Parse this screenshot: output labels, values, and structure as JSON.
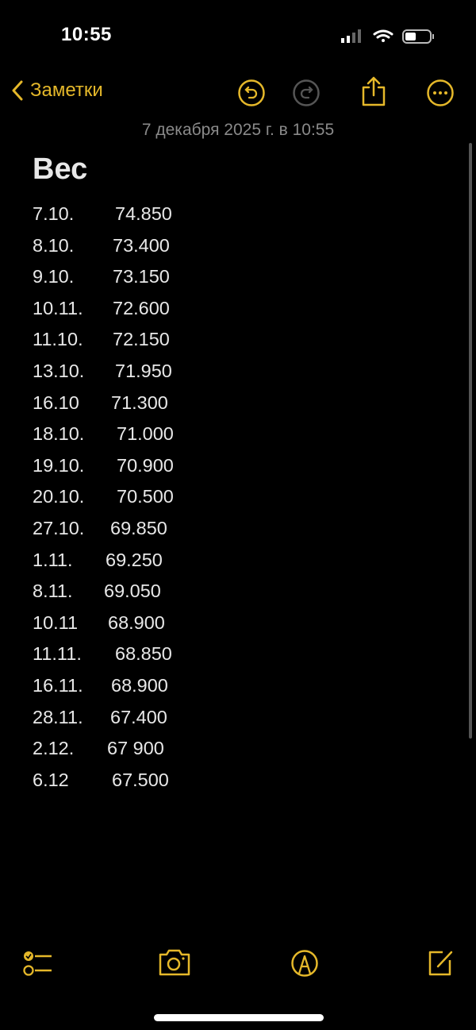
{
  "status_bar": {
    "time": "10:55",
    "signal-icon": "cellular-signal",
    "wifi-icon": "wifi",
    "battery-icon": "battery-low"
  },
  "nav": {
    "back_label": "Заметки",
    "icons": [
      "chevron-left",
      "undo",
      "redo",
      "share",
      "more"
    ]
  },
  "note": {
    "date": "7 декабря 2025 г. в 10:55",
    "title": "Вес",
    "entries": [
      {
        "date": "7.10.",
        "value": "74.850"
      },
      {
        "date": "8.10.",
        "value": "73.400"
      },
      {
        "date": "9.10.",
        "value": "73.150"
      },
      {
        "date": "10.11.",
        "value": "72.600"
      },
      {
        "date": "11.10.",
        "value": "72.150"
      },
      {
        "date": "13.10.",
        "value": "71.950"
      },
      {
        "date": "16.10",
        "value": "71.300"
      },
      {
        "date": "18.10.",
        "value": "71.000"
      },
      {
        "date": "19.10.",
        "value": "70.900"
      },
      {
        "date": "20.10.",
        "value": "70.500"
      },
      {
        "date": "27.10.",
        "value": "69.850"
      },
      {
        "date": "1.11.",
        "value": "69.250"
      },
      {
        "date": "8.11.",
        "value": "69.050"
      },
      {
        "date": "10.11",
        "value": "68.900"
      },
      {
        "date": "11.11.",
        "value": "68.850"
      },
      {
        "date": "16.11.",
        "value": "68.900"
      },
      {
        "date": "28.11.",
        "value": "67.400"
      },
      {
        "date": "2.12.",
        "value": "67 900"
      },
      {
        "date": "6.12",
        "value": "67.500"
      }
    ]
  },
  "toolbar": {
    "icons": [
      "checklist",
      "camera",
      "markup",
      "compose"
    ]
  },
  "colors": {
    "accent": "#e5b82a",
    "background": "#000000",
    "text": "#e8e8e8",
    "secondary": "#8a8a8a"
  }
}
